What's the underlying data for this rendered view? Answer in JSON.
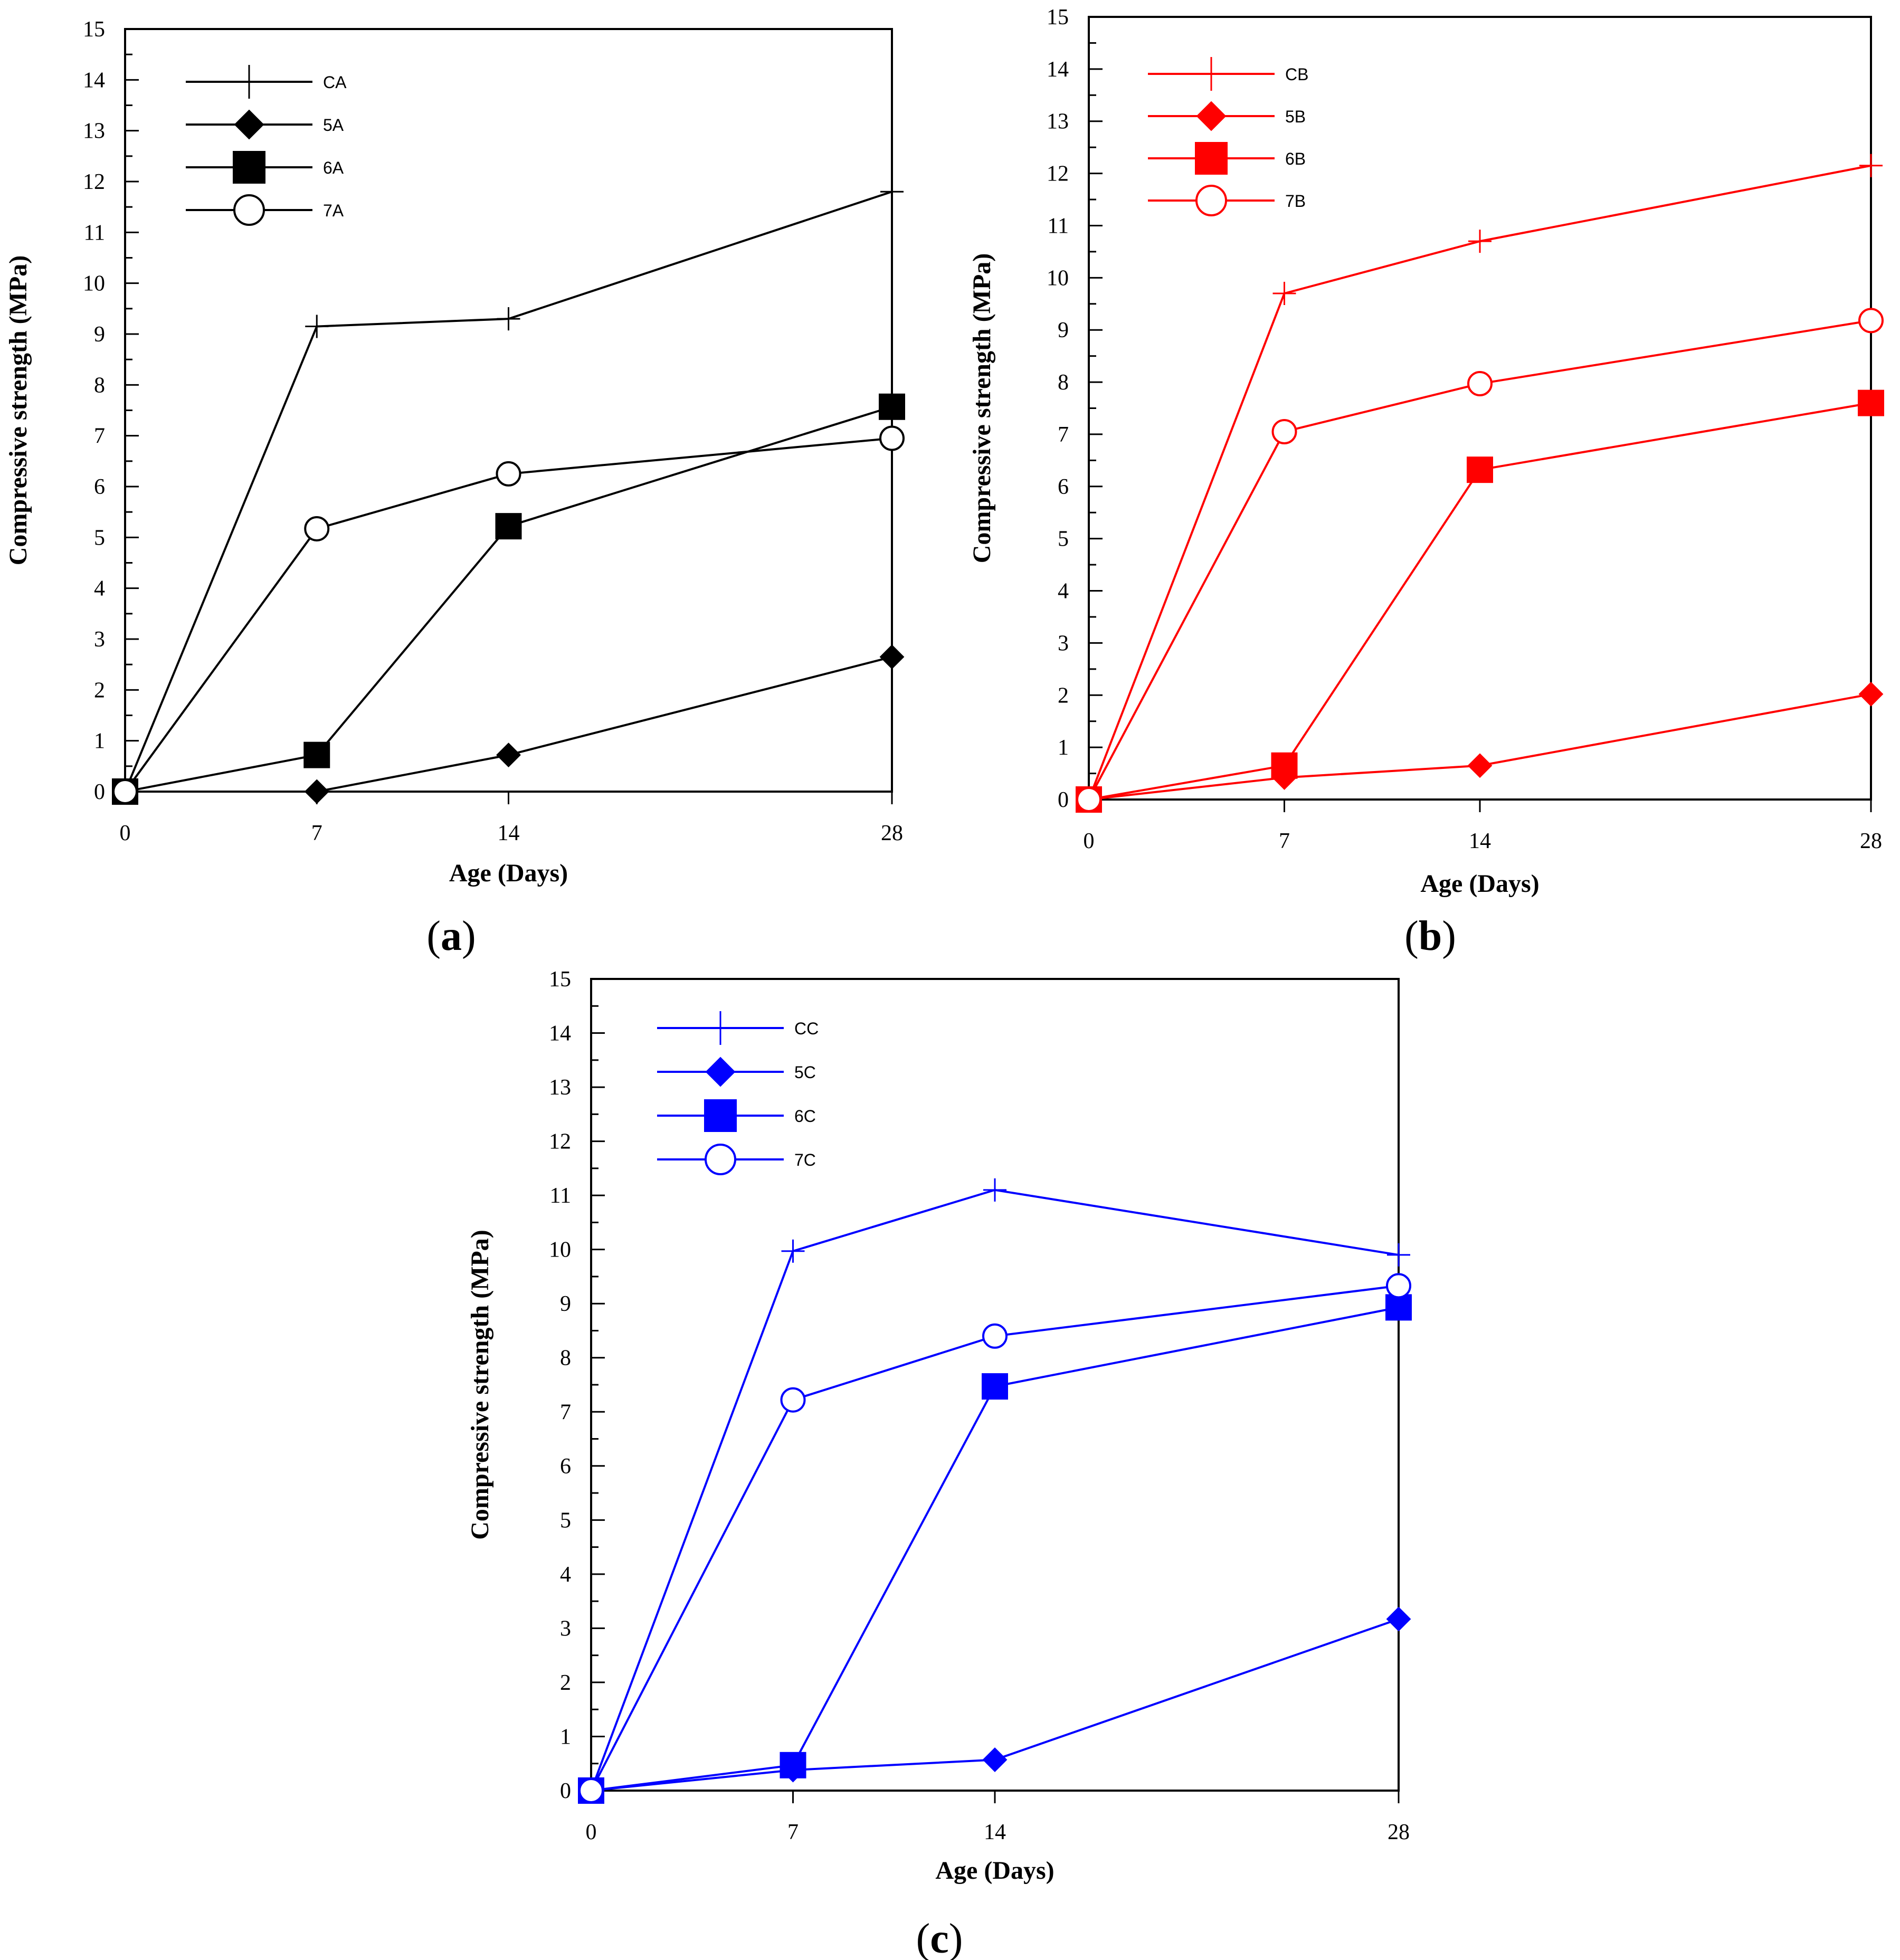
{
  "chart_data": [
    {
      "type": "line",
      "caption": {
        "open": "(",
        "letter": "a",
        "close": ")"
      },
      "color": "#000000",
      "xlabel": "Age (Days)",
      "ylabel": "Compressive strength (MPa)",
      "x": [
        0,
        7,
        14,
        28
      ],
      "xticks": [
        0,
        7,
        14,
        28
      ],
      "xlim": [
        0,
        28
      ],
      "ylim": [
        0,
        15
      ],
      "yticks": [
        0,
        1,
        2,
        3,
        4,
        5,
        6,
        7,
        8,
        9,
        10,
        11,
        12,
        13,
        14,
        15
      ],
      "legend_position": "top-left",
      "series": [
        {
          "name": "CA",
          "marker": "plus",
          "values": [
            0,
            9.15,
            9.3,
            11.8
          ]
        },
        {
          "name": "5A",
          "marker": "diamond",
          "values": [
            0,
            0,
            0.72,
            2.65
          ]
        },
        {
          "name": "6A",
          "marker": "square",
          "values": [
            0,
            0.72,
            5.22,
            7.57
          ]
        },
        {
          "name": "7A",
          "marker": "circle",
          "values": [
            0,
            5.17,
            6.25,
            6.95
          ]
        }
      ]
    },
    {
      "type": "line",
      "caption": {
        "open": "(",
        "letter": "b",
        "close": ")"
      },
      "color": "#ff0000",
      "xlabel": "Age (Days)",
      "ylabel": "Compressive strength (MPa)",
      "x": [
        0,
        7,
        14,
        28
      ],
      "xticks": [
        0,
        7,
        14,
        28
      ],
      "xlim": [
        0,
        28
      ],
      "ylim": [
        0,
        15
      ],
      "yticks": [
        0,
        1,
        2,
        3,
        4,
        5,
        6,
        7,
        8,
        9,
        10,
        11,
        12,
        13,
        14,
        15
      ],
      "legend_position": "top-left",
      "series": [
        {
          "name": "CB",
          "marker": "plus",
          "values": [
            0,
            9.7,
            10.7,
            12.15
          ]
        },
        {
          "name": "5B",
          "marker": "diamond",
          "values": [
            0,
            0.42,
            0.65,
            2.02
          ]
        },
        {
          "name": "6B",
          "marker": "square",
          "values": [
            0,
            0.65,
            6.32,
            7.6
          ]
        },
        {
          "name": "7B",
          "marker": "circle",
          "values": [
            0,
            7.05,
            7.97,
            9.18
          ]
        }
      ]
    },
    {
      "type": "line",
      "caption": {
        "open": "(",
        "letter": "c",
        "close": ")"
      },
      "color": "#0000ff",
      "xlabel": "Age (Days)",
      "ylabel": "Compressive strength (MPa)",
      "x": [
        0,
        7,
        14,
        28
      ],
      "xticks": [
        0,
        7,
        14,
        28
      ],
      "xlim": [
        0,
        28
      ],
      "ylim": [
        0,
        15
      ],
      "yticks": [
        0,
        1,
        2,
        3,
        4,
        5,
        6,
        7,
        8,
        9,
        10,
        11,
        12,
        13,
        14,
        15
      ],
      "legend_position": "top-left",
      "series": [
        {
          "name": "CC",
          "marker": "plus",
          "values": [
            0,
            9.97,
            11.1,
            9.9
          ]
        },
        {
          "name": "5C",
          "marker": "diamond",
          "values": [
            0,
            0.38,
            0.57,
            3.17
          ]
        },
        {
          "name": "6C",
          "marker": "square",
          "values": [
            0,
            0.47,
            7.47,
            8.93
          ]
        },
        {
          "name": "7C",
          "marker": "circle",
          "values": [
            0,
            7.22,
            8.4,
            9.33
          ]
        }
      ]
    }
  ]
}
